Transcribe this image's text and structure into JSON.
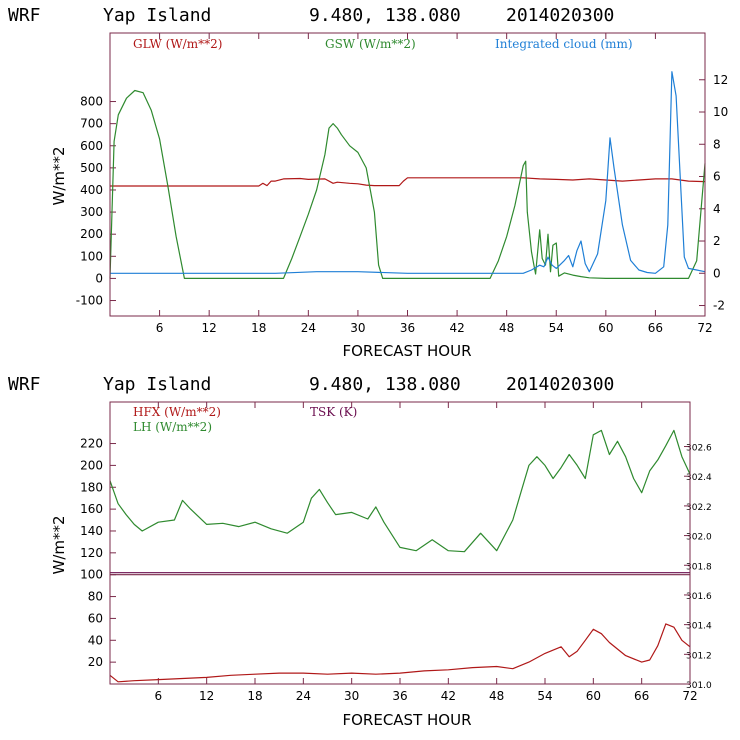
{
  "colors": {
    "red": "#b01818",
    "green": "#2f8a2f",
    "blue": "#1f7fd6",
    "purple": "#6a0d4e",
    "axis": "#7a2a4a"
  },
  "chart_data": [
    {
      "type": "line",
      "header": {
        "model": "WRF",
        "location": "Yap Island",
        "coords": "9.480, 138.080",
        "date": "2014020300"
      },
      "xlabel": "FORECAST HOUR",
      "ylabel": "W/m**2",
      "xlim": [
        0,
        72
      ],
      "ylim": [
        -170,
        1110
      ],
      "y2lim": [
        -2.65,
        14.9
      ],
      "xticks": [
        "6",
        "12",
        "18",
        "24",
        "30",
        "36",
        "42",
        "48",
        "54",
        "60",
        "66",
        "72"
      ],
      "yticks": [
        "-100",
        "0",
        "100",
        "200",
        "300",
        "400",
        "500",
        "600",
        "700",
        "800"
      ],
      "y2ticks": [
        "-2",
        "0",
        "2",
        "4",
        "6",
        "8",
        "10",
        "12"
      ],
      "series": [
        {
          "name": "GLW (W/m**2)",
          "color": "red",
          "axis": "left",
          "x": [
            0,
            10,
            11,
            18,
            18.5,
            19,
            19.5,
            20,
            21,
            23,
            24,
            26,
            27,
            27.5,
            29,
            30,
            31,
            32,
            33,
            34,
            35,
            35.5,
            36,
            40,
            44,
            46,
            48,
            50,
            52,
            54,
            56,
            58,
            60,
            62,
            64,
            66,
            68,
            70,
            72
          ],
          "y": [
            418,
            418,
            418,
            418,
            430,
            420,
            440,
            440,
            450,
            452,
            448,
            450,
            430,
            435,
            430,
            428,
            422,
            420,
            420,
            420,
            420,
            440,
            455,
            455,
            455,
            455,
            455,
            455,
            450,
            448,
            445,
            450,
            445,
            440,
            445,
            450,
            450,
            440,
            438
          ]
        },
        {
          "name": "GSW (W/m**2)",
          "color": "green",
          "axis": "left",
          "x": [
            0,
            0.5,
            1,
            2,
            3,
            4,
            5,
            6,
            7,
            8,
            9,
            21,
            22,
            23,
            24,
            25,
            26,
            26.5,
            27,
            27.5,
            28,
            29,
            30,
            31,
            32,
            32.5,
            33,
            46,
            47,
            48,
            49,
            50,
            50.3,
            50.5,
            51,
            51.3,
            51.5,
            52,
            52.3,
            52.7,
            53,
            53.3,
            53.6,
            54,
            54.3,
            55,
            56,
            57,
            58,
            60,
            65,
            70,
            71,
            72
          ],
          "y": [
            0,
            620,
            740,
            815,
            850,
            840,
            760,
            630,
            420,
            190,
            0,
            0,
            90,
            190,
            290,
            400,
            560,
            680,
            700,
            680,
            650,
            600,
            570,
            500,
            300,
            60,
            0,
            0,
            80,
            190,
            330,
            510,
            530,
            300,
            120,
            60,
            20,
            220,
            90,
            60,
            200,
            30,
            150,
            160,
            10,
            25,
            15,
            8,
            3,
            0,
            0,
            0,
            80,
            520
          ]
        },
        {
          "name": "Integrated cloud (mm)",
          "color": "blue",
          "axis": "right",
          "x": [
            0,
            20,
            25,
            30,
            36,
            50,
            51,
            52,
            52.5,
            53,
            53.5,
            54,
            55,
            55.5,
            56,
            56.5,
            57,
            57.5,
            58,
            59,
            60,
            60.5,
            61,
            62,
            63,
            64,
            65,
            66,
            67,
            67.5,
            68,
            68.5,
            69,
            69.5,
            70,
            71,
            72
          ],
          "y": [
            0,
            0,
            0.1,
            0.1,
            0,
            0,
            0.2,
            0.5,
            0.4,
            1,
            0.5,
            0.3,
            0.8,
            1.1,
            0.4,
            1.4,
            2,
            0.6,
            0.1,
            1.2,
            4.5,
            8.4,
            6.5,
            3,
            0.8,
            0.2,
            0.05,
            0,
            0.4,
            3,
            12.5,
            11,
            6,
            1,
            0.3,
            0.2,
            0.1
          ]
        }
      ]
    },
    {
      "type": "line",
      "header": {
        "model": "WRF",
        "location": "Yap Island",
        "coords": "9.480, 138.080",
        "date": "2014020300"
      },
      "xlabel": "FORECAST HOUR",
      "ylabel": "W/m**2",
      "xlim": [
        0,
        72
      ],
      "ylim": [
        0,
        258
      ],
      "y2lim": [
        301.0,
        302.9
      ],
      "xticks": [
        "6",
        "12",
        "18",
        "24",
        "30",
        "36",
        "42",
        "48",
        "54",
        "60",
        "66",
        "72"
      ],
      "yticks": [
        "20",
        "40",
        "60",
        "80",
        "100",
        "120",
        "140",
        "160",
        "180",
        "200",
        "220"
      ],
      "y2ticks": [
        "301.0",
        "301.2",
        "301.4",
        "301.6",
        "301.8",
        "302.0",
        "302.2",
        "302.4",
        "302.6"
      ],
      "series": [
        {
          "name": "HFX (W/m**2)",
          "color": "red",
          "axis": "left",
          "x": [
            0,
            1,
            3,
            6,
            9,
            12,
            15,
            18,
            21,
            24,
            27,
            30,
            33,
            36,
            39,
            42,
            45,
            48,
            50,
            52,
            54,
            56,
            57,
            58,
            59,
            60,
            61,
            62,
            64,
            66,
            67,
            68,
            69,
            70,
            71,
            72
          ],
          "y": [
            8,
            2,
            3,
            4,
            5,
            6,
            8,
            9,
            10,
            10,
            9,
            10,
            9,
            10,
            12,
            13,
            15,
            16,
            14,
            20,
            28,
            34,
            25,
            30,
            40,
            50,
            46,
            38,
            26,
            20,
            22,
            35,
            55,
            52,
            40,
            34
          ]
        },
        {
          "name": "LH (W/m**2)",
          "color": "green",
          "axis": "left",
          "x": [
            0,
            1,
            2,
            3,
            4,
            6,
            8,
            9,
            10,
            12,
            14,
            16,
            18,
            20,
            22,
            24,
            25,
            26,
            27,
            28,
            30,
            32,
            33,
            34,
            36,
            38,
            40,
            42,
            44,
            46,
            48,
            50,
            51,
            52,
            53,
            54,
            55,
            56,
            57,
            58,
            59,
            60,
            61,
            62,
            63,
            64,
            65,
            66,
            67,
            68,
            69,
            70,
            71,
            72
          ],
          "y": [
            186,
            165,
            155,
            146,
            140,
            148,
            150,
            168,
            160,
            146,
            147,
            144,
            148,
            142,
            138,
            148,
            170,
            178,
            166,
            155,
            157,
            151,
            162,
            148,
            125,
            122,
            132,
            122,
            121,
            138,
            122,
            150,
            175,
            200,
            208,
            200,
            188,
            198,
            210,
            200,
            188,
            228,
            232,
            210,
            222,
            208,
            188,
            175,
            195,
            205,
            218,
            232,
            208,
            192
          ]
        },
        {
          "name": "TSK (K)",
          "color": "purple",
          "axis": "right",
          "x": [
            0,
            72
          ],
          "y": [
            301.75,
            301.75
          ]
        }
      ]
    }
  ]
}
